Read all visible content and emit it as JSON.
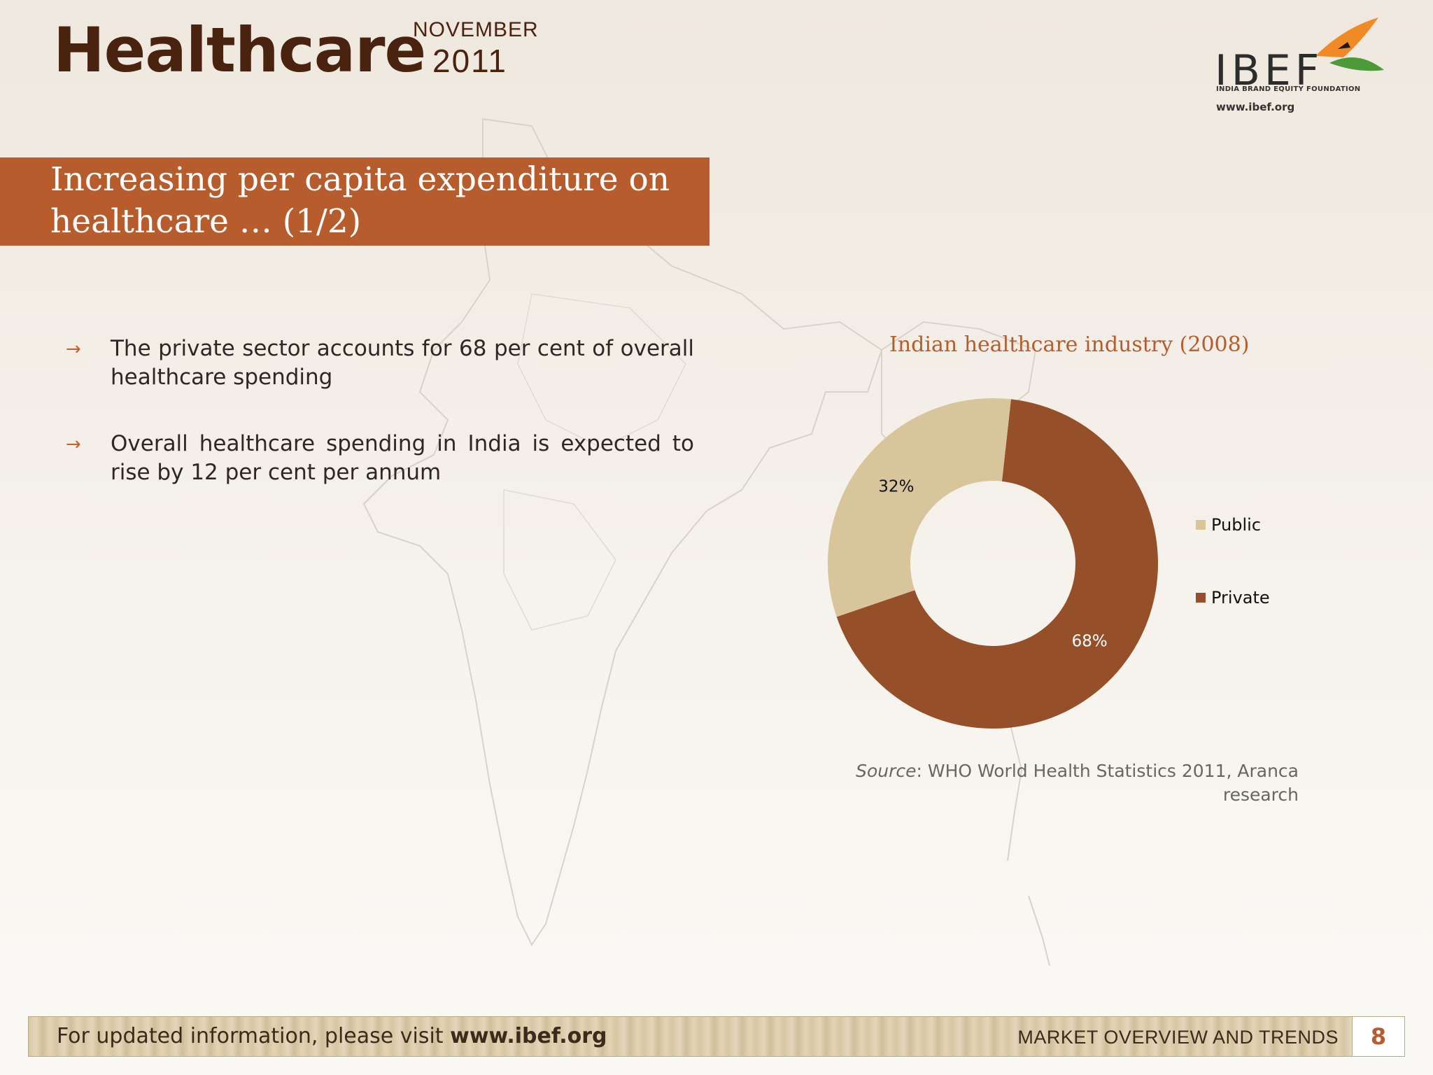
{
  "header": {
    "title": "Healthcare",
    "month": "NOVEMBER",
    "year": "2011"
  },
  "logo": {
    "text": "IBEF",
    "subtitle": "INDIA BRAND EQUITY FOUNDATION",
    "url": "www.ibef.org"
  },
  "banner": {
    "line1": "Increasing per capita expenditure on",
    "line2": "healthcare … (1/2)"
  },
  "bullets": [
    "The private sector accounts for 68 per cent of overall healthcare spending",
    "Overall healthcare spending in India is expected to rise by 12 per cent per annum"
  ],
  "chart_data": {
    "type": "pie",
    "variant": "donut",
    "title": "Indian healthcare industry (2008)",
    "categories": [
      "Public",
      "Private"
    ],
    "values": [
      32,
      68
    ],
    "labels": [
      "32%",
      "68%"
    ],
    "colors": [
      "#d9c59c",
      "#95502a"
    ],
    "legend_position": "right"
  },
  "source": {
    "label": "Source",
    "text": ": WHO World Health Statistics 2011, Aranca research"
  },
  "footer": {
    "left_text": "For updated information, please visit ",
    "link": "www.ibef.org",
    "section": "MARKET OVERVIEW AND TRENDS",
    "page_number": "8"
  },
  "colors": {
    "accent": "#b65c2d",
    "title": "#4a2310"
  }
}
